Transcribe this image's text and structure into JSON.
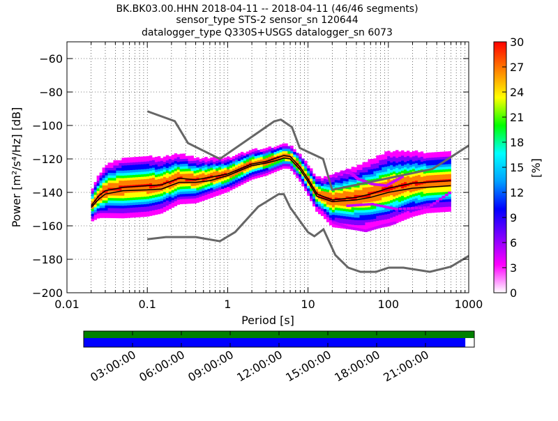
{
  "chart_data": {
    "type": "heatmap",
    "title_lines": [
      "BK.BK03.00.HHN   2018-04-11 -- 2018-04-11  (46/46 segments)",
      "sensor_type STS-2 sensor_sn 120644",
      "datalogger_type Q330S+USGS datalogger_sn 6073"
    ],
    "xlabel": "Period [s]",
    "ylabel": "Power [m²/s⁴/Hz] [dB]",
    "x_scale": "log",
    "xlim": [
      0.01,
      1000
    ],
    "ylim": [
      -200,
      -50
    ],
    "x_ticks": [
      {
        "value": 0.01,
        "label": "0.01"
      },
      {
        "value": 0.1,
        "label": "0.1"
      },
      {
        "value": 1,
        "label": "1"
      },
      {
        "value": 10,
        "label": "10"
      },
      {
        "value": 100,
        "label": "100"
      },
      {
        "value": 1000,
        "label": "1000"
      }
    ],
    "y_ticks": [
      -60,
      -80,
      -100,
      -120,
      -140,
      -160,
      -180,
      -200
    ],
    "grid": "dotted",
    "colorbar": {
      "label": "[%]",
      "range": [
        0,
        30
      ],
      "ticks": [
        0,
        3,
        6,
        9,
        12,
        15,
        18,
        21,
        24,
        27,
        30
      ],
      "colormap": [
        "#ffffff",
        "#ff00ff",
        "#8000ff",
        "#0000ff",
        "#00a0ff",
        "#00ffff",
        "#00ff00",
        "#ffff00",
        "#ff8000",
        "#ff0000"
      ]
    },
    "nhnm": [
      [
        0.1,
        -91.5
      ],
      [
        0.22,
        -97.4
      ],
      [
        0.32,
        -110.5
      ],
      [
        0.8,
        -120
      ],
      [
        3.8,
        -97.5
      ],
      [
        4.6,
        -96.5
      ],
      [
        6.3,
        -101
      ],
      [
        7.9,
        -113.5
      ],
      [
        15.4,
        -120
      ],
      [
        20,
        -138.5
      ],
      [
        354.8,
        -126
      ],
      [
        1000,
        -112
      ]
    ],
    "nlnm": [
      [
        0.1,
        -168
      ],
      [
        0.17,
        -166.7
      ],
      [
        0.4,
        -166.7
      ],
      [
        0.8,
        -169.2
      ],
      [
        1.24,
        -163.7
      ],
      [
        2.4,
        -148.6
      ],
      [
        4.3,
        -141.1
      ],
      [
        5,
        -141.1
      ],
      [
        6,
        -149
      ],
      [
        10,
        -163.8
      ],
      [
        12,
        -166.2
      ],
      [
        15.6,
        -162.1
      ],
      [
        21.9,
        -177.5
      ],
      [
        31.6,
        -185
      ],
      [
        45,
        -187.5
      ],
      [
        70,
        -187.5
      ],
      [
        101,
        -185
      ],
      [
        154,
        -185
      ],
      [
        328,
        -187.5
      ],
      [
        600,
        -184.4
      ],
      [
        1000,
        -178
      ]
    ],
    "mode": [
      [
        0.02,
        -148
      ],
      [
        0.025,
        -142
      ],
      [
        0.03,
        -139
      ],
      [
        0.05,
        -137
      ],
      [
        0.1,
        -136
      ],
      [
        0.15,
        -135.5
      ],
      [
        0.25,
        -131.5
      ],
      [
        0.4,
        -132.5
      ],
      [
        0.6,
        -131
      ],
      [
        1,
        -129
      ],
      [
        2,
        -123
      ],
      [
        3,
        -121.5
      ],
      [
        4,
        -119.5
      ],
      [
        5,
        -118
      ],
      [
        6,
        -118.5
      ],
      [
        8,
        -125
      ],
      [
        10,
        -132
      ],
      [
        13,
        -141
      ],
      [
        20,
        -144.5
      ],
      [
        40,
        -143
      ],
      [
        60,
        -141
      ],
      [
        100,
        -137.5
      ],
      [
        200,
        -134.5
      ],
      [
        600,
        -133
      ]
    ],
    "mean": [
      [
        0.02,
        -149
      ],
      [
        0.025,
        -144
      ],
      [
        0.03,
        -141
      ],
      [
        0.05,
        -139
      ],
      [
        0.1,
        -138.5
      ],
      [
        0.15,
        -138
      ],
      [
        0.25,
        -134
      ],
      [
        0.4,
        -134
      ],
      [
        0.6,
        -133
      ],
      [
        1,
        -130
      ],
      [
        2,
        -124
      ],
      [
        3,
        -122.5
      ],
      [
        4,
        -121
      ],
      [
        5,
        -119.5
      ],
      [
        6,
        -120
      ],
      [
        8,
        -126.5
      ],
      [
        10,
        -133.5
      ],
      [
        13,
        -142.5
      ],
      [
        20,
        -145.5
      ],
      [
        40,
        -144.5
      ],
      [
        60,
        -143
      ],
      [
        100,
        -140
      ],
      [
        200,
        -137.5
      ],
      [
        600,
        -136
      ]
    ],
    "spread": [
      [
        0.02,
        4
      ],
      [
        0.03,
        7
      ],
      [
        0.05,
        8
      ],
      [
        0.1,
        8
      ],
      [
        0.2,
        7
      ],
      [
        0.4,
        6
      ],
      [
        1,
        4.5
      ],
      [
        3,
        3.5
      ],
      [
        6,
        3
      ],
      [
        10,
        4
      ],
      [
        15,
        5
      ],
      [
        20,
        7
      ],
      [
        50,
        9
      ],
      [
        100,
        10
      ],
      [
        300,
        8
      ],
      [
        600,
        8
      ]
    ],
    "outliers": [
      {
        "x": [
          20,
          30,
          40,
          60,
          90,
          150
        ],
        "y": [
          -130,
          -127,
          -132,
          -135,
          -136,
          -130
        ]
      },
      {
        "x": [
          30,
          60,
          120,
          300,
          600
        ],
        "y": [
          -148,
          -147,
          -150,
          -149,
          -139
        ]
      },
      {
        "x": [
          20,
          30,
          50,
          80,
          120
        ],
        "y": [
          -158,
          -161,
          -163,
          -160,
          -158
        ]
      }
    ],
    "timeline": {
      "tick_labels": [
        "03:00:00",
        "06:00:00",
        "09:00:00",
        "12:00:00",
        "15:00:00",
        "18:00:00",
        "21:00:00"
      ],
      "tick_hours": [
        3,
        6,
        9,
        12,
        15,
        18,
        21
      ],
      "range_hours": [
        0,
        24
      ],
      "coverage_fraction": 0.977,
      "top_color": "#008000",
      "bottom_color": "#0000ff"
    }
  }
}
